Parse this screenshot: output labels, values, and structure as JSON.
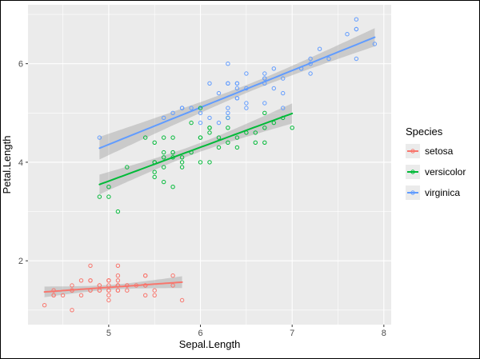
{
  "figure": {
    "background": "#FFFFFF",
    "border_color": "#000000"
  },
  "chart_data": {
    "type": "scatter",
    "title": "",
    "xlabel": "Sepal.Length",
    "ylabel": "Petal.Length",
    "xlim": [
      4.12,
      8.08
    ],
    "ylim": [
      0.705,
      7.195
    ],
    "x_ticks": [
      5,
      6,
      7,
      8
    ],
    "y_ticks": [
      2,
      4,
      6
    ],
    "x_minor_ticks": [
      4.5,
      5.5,
      6.5,
      7.5
    ],
    "y_minor_ticks": [
      1,
      3,
      5,
      7
    ],
    "grid": true,
    "panel_background": "#EBEBEB",
    "grid_major_color": "#FFFFFF",
    "grid_minor_color": "#FFFFFF",
    "tick_color": "#333333",
    "tick_label_color": "#4D4D4D",
    "point_style": "open-circle",
    "smooth": {
      "method": "lm",
      "confidence_level": 0.95,
      "band_fill": "#999999",
      "band_opacity": 0.4
    },
    "legend": {
      "title": "Species",
      "position": "right",
      "key_fill": "#EBEBEB"
    },
    "series": [
      {
        "name": "setosa",
        "color": "#F8766D",
        "points": [
          [
            5.1,
            1.4
          ],
          [
            4.9,
            1.4
          ],
          [
            4.7,
            1.3
          ],
          [
            4.6,
            1.5
          ],
          [
            5.0,
            1.4
          ],
          [
            5.4,
            1.7
          ],
          [
            4.6,
            1.4
          ],
          [
            5.0,
            1.5
          ],
          [
            4.4,
            1.4
          ],
          [
            4.9,
            1.5
          ],
          [
            5.4,
            1.5
          ],
          [
            4.8,
            1.6
          ],
          [
            4.8,
            1.4
          ],
          [
            4.3,
            1.1
          ],
          [
            5.8,
            1.2
          ],
          [
            5.7,
            1.5
          ],
          [
            5.4,
            1.3
          ],
          [
            5.1,
            1.4
          ],
          [
            5.7,
            1.7
          ],
          [
            5.1,
            1.5
          ],
          [
            5.4,
            1.7
          ],
          [
            5.1,
            1.5
          ],
          [
            4.6,
            1.0
          ],
          [
            5.1,
            1.7
          ],
          [
            4.8,
            1.9
          ],
          [
            5.0,
            1.6
          ],
          [
            5.0,
            1.6
          ],
          [
            5.2,
            1.5
          ],
          [
            5.2,
            1.4
          ],
          [
            4.7,
            1.6
          ],
          [
            4.8,
            1.6
          ],
          [
            5.4,
            1.5
          ],
          [
            5.2,
            1.5
          ],
          [
            5.5,
            1.4
          ],
          [
            4.9,
            1.5
          ],
          [
            5.0,
            1.2
          ],
          [
            5.5,
            1.3
          ],
          [
            4.9,
            1.4
          ],
          [
            4.4,
            1.3
          ],
          [
            5.1,
            1.5
          ],
          [
            5.0,
            1.3
          ],
          [
            4.5,
            1.3
          ],
          [
            4.4,
            1.3
          ],
          [
            5.0,
            1.6
          ],
          [
            5.1,
            1.9
          ],
          [
            4.8,
            1.4
          ],
          [
            5.1,
            1.6
          ],
          [
            4.6,
            1.4
          ],
          [
            5.3,
            1.5
          ],
          [
            5.0,
            1.4
          ]
        ]
      },
      {
        "name": "versicolor",
        "color": "#00BA38",
        "points": [
          [
            7.0,
            4.7
          ],
          [
            6.4,
            4.5
          ],
          [
            6.9,
            4.9
          ],
          [
            5.5,
            4.0
          ],
          [
            6.5,
            4.6
          ],
          [
            5.7,
            4.5
          ],
          [
            6.3,
            4.7
          ],
          [
            4.9,
            3.3
          ],
          [
            6.6,
            4.6
          ],
          [
            5.2,
            3.9
          ],
          [
            5.0,
            3.5
          ],
          [
            5.9,
            4.2
          ],
          [
            6.0,
            4.0
          ],
          [
            6.1,
            4.7
          ],
          [
            5.6,
            3.6
          ],
          [
            6.7,
            4.4
          ],
          [
            5.6,
            4.5
          ],
          [
            5.8,
            4.1
          ],
          [
            6.2,
            4.5
          ],
          [
            5.6,
            3.9
          ],
          [
            5.9,
            4.8
          ],
          [
            6.1,
            4.0
          ],
          [
            6.3,
            4.9
          ],
          [
            6.1,
            4.7
          ],
          [
            6.4,
            4.3
          ],
          [
            6.6,
            4.4
          ],
          [
            6.8,
            4.8
          ],
          [
            6.7,
            5.0
          ],
          [
            6.0,
            4.5
          ],
          [
            5.7,
            3.5
          ],
          [
            5.5,
            3.8
          ],
          [
            5.5,
            3.7
          ],
          [
            5.8,
            3.9
          ],
          [
            6.0,
            5.1
          ],
          [
            5.4,
            4.5
          ],
          [
            6.0,
            4.5
          ],
          [
            6.7,
            4.7
          ],
          [
            6.3,
            4.4
          ],
          [
            5.6,
            4.1
          ],
          [
            5.5,
            4.0
          ],
          [
            5.5,
            4.4
          ],
          [
            6.1,
            4.6
          ],
          [
            5.8,
            4.0
          ],
          [
            5.0,
            3.3
          ],
          [
            5.6,
            4.2
          ],
          [
            5.7,
            4.2
          ],
          [
            5.7,
            4.2
          ],
          [
            6.2,
            4.3
          ],
          [
            5.1,
            3.0
          ],
          [
            5.7,
            4.1
          ]
        ]
      },
      {
        "name": "virginica",
        "color": "#619CFF",
        "points": [
          [
            6.3,
            6.0
          ],
          [
            5.8,
            5.1
          ],
          [
            7.1,
            5.9
          ],
          [
            6.3,
            5.6
          ],
          [
            6.5,
            5.8
          ],
          [
            7.6,
            6.6
          ],
          [
            4.9,
            4.5
          ],
          [
            7.3,
            6.3
          ],
          [
            6.7,
            5.8
          ],
          [
            7.2,
            6.1
          ],
          [
            6.5,
            5.1
          ],
          [
            6.4,
            5.3
          ],
          [
            6.8,
            5.5
          ],
          [
            5.7,
            5.0
          ],
          [
            5.8,
            5.1
          ],
          [
            6.4,
            5.3
          ],
          [
            6.5,
            5.5
          ],
          [
            7.7,
            6.7
          ],
          [
            7.7,
            6.9
          ],
          [
            6.0,
            5.0
          ],
          [
            6.9,
            5.7
          ],
          [
            5.6,
            4.9
          ],
          [
            7.7,
            6.7
          ],
          [
            6.3,
            4.9
          ],
          [
            6.7,
            5.7
          ],
          [
            7.2,
            6.0
          ],
          [
            6.2,
            4.8
          ],
          [
            6.1,
            4.9
          ],
          [
            6.4,
            5.6
          ],
          [
            7.2,
            5.8
          ],
          [
            7.4,
            6.1
          ],
          [
            7.9,
            6.4
          ],
          [
            6.4,
            5.6
          ],
          [
            6.3,
            5.1
          ],
          [
            6.1,
            5.6
          ],
          [
            7.7,
            6.1
          ],
          [
            6.3,
            5.6
          ],
          [
            6.4,
            5.5
          ],
          [
            6.0,
            4.8
          ],
          [
            6.9,
            5.4
          ],
          [
            6.7,
            5.6
          ],
          [
            6.9,
            5.1
          ],
          [
            5.8,
            5.1
          ],
          [
            6.8,
            5.9
          ],
          [
            6.7,
            5.7
          ],
          [
            6.7,
            5.2
          ],
          [
            6.3,
            5.0
          ],
          [
            6.5,
            5.2
          ],
          [
            6.2,
            5.4
          ],
          [
            5.9,
            5.1
          ]
        ]
      }
    ]
  }
}
